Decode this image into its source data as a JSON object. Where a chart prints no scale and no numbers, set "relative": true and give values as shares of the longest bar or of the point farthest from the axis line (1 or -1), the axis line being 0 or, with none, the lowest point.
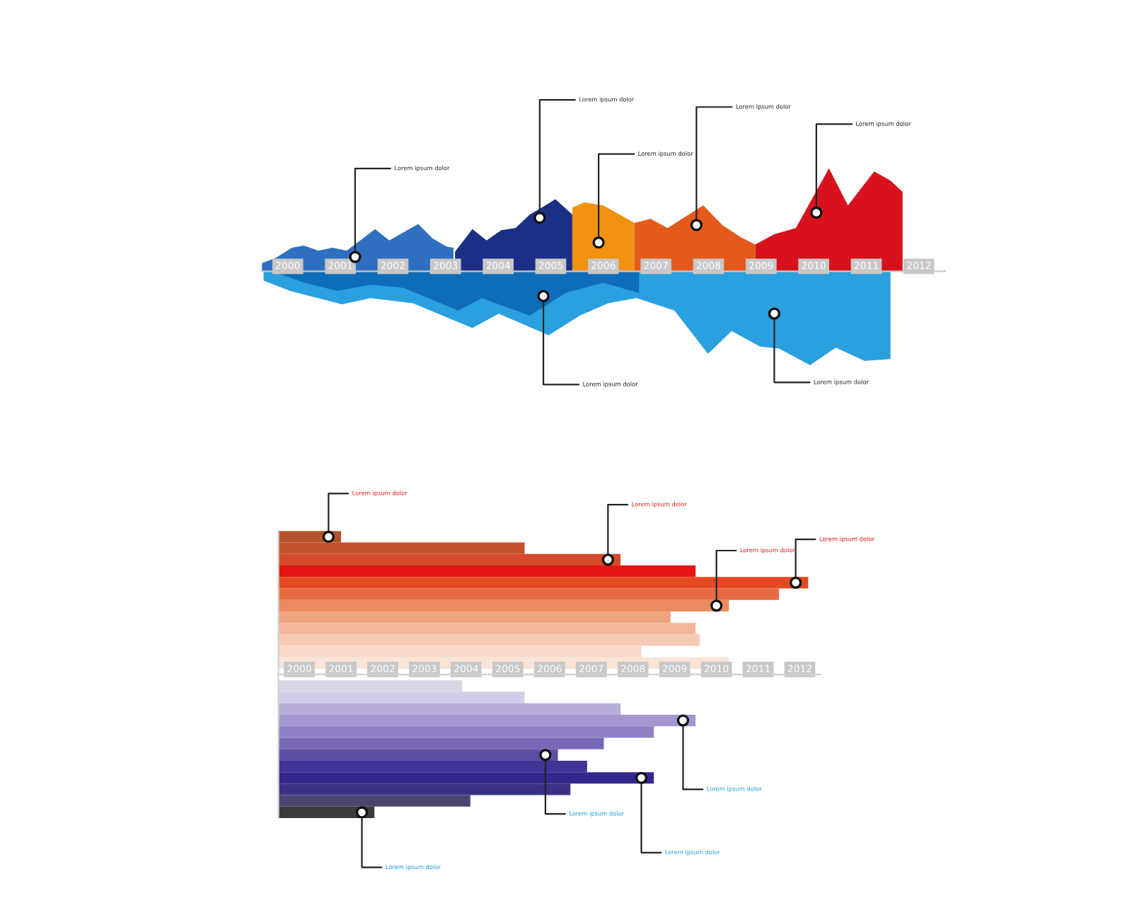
{
  "chart_data": [
    {
      "type": "area",
      "relative": true,
      "tick_labels": "x",
      "xlim": [
        1999.5,
        2012.5
      ],
      "xticks": [
        2000,
        2001,
        2002,
        2003,
        2004,
        2005,
        2006,
        2007,
        2008,
        2009,
        2010,
        2011,
        2012
      ],
      "series": [
        {
          "color": "#2f6fc0",
          "x": [
            1999.51,
            1999.77,
            2000.08,
            2000.31,
            2000.58,
            2000.85,
            2001.12,
            2001.66,
            2001.93,
            2002.48,
            2002.75,
            2003.02,
            2003.15
          ],
          "values": [
            0.08,
            0.13,
            0.23,
            0.25,
            0.2,
            0.23,
            0.2,
            0.41,
            0.3,
            0.46,
            0.32,
            0.24,
            0.23
          ]
        },
        {
          "color": "#1c2f86",
          "x": [
            2003.18,
            2003.51,
            2003.78,
            2004.06,
            2004.33,
            2004.6,
            2005.09,
            2005.41
          ],
          "values": [
            0.19,
            0.41,
            0.3,
            0.4,
            0.42,
            0.55,
            0.7,
            0.55
          ]
        },
        {
          "color": "#f0920f",
          "x": [
            2005.41,
            2005.64,
            2006.0,
            2006.31,
            2006.59
          ],
          "values": [
            0.62,
            0.67,
            0.64,
            0.55,
            0.47
          ]
        },
        {
          "color": "#e45a1c",
          "x": [
            2006.59,
            2006.9,
            2007.22,
            2007.9,
            2008.26,
            2008.62,
            2008.89
          ],
          "values": [
            0.47,
            0.51,
            0.42,
            0.64,
            0.45,
            0.33,
            0.26
          ]
        },
        {
          "color": "#d8121c",
          "x": [
            2008.89,
            2009.25,
            2009.66,
            2010.29,
            2010.65,
            2011.15,
            2011.46,
            2011.69
          ],
          "values": [
            0.26,
            0.36,
            0.42,
            1.0,
            0.64,
            0.97,
            0.88,
            0.77
          ]
        },
        {
          "color": "#2aa0de",
          "x": [
            1999.54,
            2000.04,
            2001.03,
            2001.57,
            2002.38,
            2003.51,
            2004.01,
            2004.96,
            2005.55,
            2006.09,
            2006.63,
            2007.35,
            2007.99,
            2008.44,
            2008.98,
            2009.34,
            2009.93,
            2010.42,
            2010.97,
            2011.46
          ],
          "values": [
            -0.09,
            -0.19,
            -0.32,
            -0.26,
            -0.31,
            -0.55,
            -0.41,
            -0.62,
            -0.43,
            -0.31,
            -0.26,
            -0.38,
            -0.8,
            -0.58,
            -0.73,
            -0.75,
            -0.91,
            -0.74,
            -0.87,
            -0.85
          ]
        },
        {
          "color": "#0f6cb8",
          "x": [
            1999.77,
            2000.31,
            2000.94,
            2001.57,
            2002.2,
            2003.24,
            2003.69,
            2004.6,
            2005.28,
            2006.0,
            2006.68
          ],
          "values": [
            -0.01,
            -0.11,
            -0.19,
            -0.13,
            -0.16,
            -0.38,
            -0.26,
            -0.43,
            -0.21,
            -0.11,
            -0.21
          ]
        }
      ],
      "annotations": [
        {
          "text": "Lorem ipsum dolor",
          "x": 2001.28,
          "y": 0.14
        },
        {
          "text": "Lorem ipsum dolor",
          "x": 2004.79,
          "y": 0.52
        },
        {
          "text": "Lorem ipsum dolor",
          "x": 2005.91,
          "y": 0.28
        },
        {
          "text": "Lorem ipsum dolor",
          "x": 2007.77,
          "y": 0.45
        },
        {
          "text": "Lorem ipsum dolor",
          "x": 2010.05,
          "y": 0.57
        },
        {
          "text": "Lorem ipsum dolor",
          "x": 2004.86,
          "y": -0.24
        },
        {
          "text": "Lorem ipsum dolor",
          "x": 2009.25,
          "y": -0.41
        }
      ]
    },
    {
      "type": "bar",
      "orientation": "horizontal",
      "xlim": [
        1999.5,
        2012.5
      ],
      "xticks": [
        2000,
        2001,
        2002,
        2003,
        2004,
        2005,
        2006,
        2007,
        2008,
        2009,
        2010,
        2011,
        2012
      ],
      "categories": [
        null,
        null,
        null,
        null,
        null,
        null,
        null,
        null,
        null,
        null,
        null,
        null,
        null,
        null,
        null,
        null,
        null,
        null,
        null,
        null,
        null,
        null,
        null,
        null,
        null
      ],
      "values": [
        2001.0,
        2005.4,
        2007.7,
        2009.5,
        2012.2,
        2011.5,
        2010.3,
        2008.9,
        2009.5,
        2009.6,
        2008.2,
        2010.3,
        null,
        2003.9,
        2005.4,
        2007.7,
        2009.5,
        2008.5,
        2007.3,
        2006.2,
        2006.9,
        2008.5,
        2006.5,
        2004.1,
        2001.8
      ],
      "colors": [
        "#b5532e",
        "#c4532c",
        "#d44a2a",
        "#e31515",
        "#e44a22",
        "#e86a40",
        "#ec8a60",
        "#f0a482",
        "#f3b89c",
        "#f6c9b2",
        "#f8d8c6",
        "#f9e4d8",
        null,
        "#d8d5e3",
        "#d2cce6",
        "#b8addb",
        "#a497cf",
        "#8e80c3",
        "#7868b5",
        "#5e4ea3",
        "#3f3596",
        "#32288e",
        "#3a3285",
        "#4b4670",
        "#3b3b3b"
      ],
      "annotations": [
        "Lorem ipsum dolor",
        "Lorem ipsum dolor",
        "Lorem ipsum dolor",
        "Lorem ipsum dolor",
        "Lorem ipsum dolor",
        "Lorem ipsum dolor",
        "Lorem ipsum dolor",
        "Lorem ipsum dolor"
      ]
    }
  ]
}
